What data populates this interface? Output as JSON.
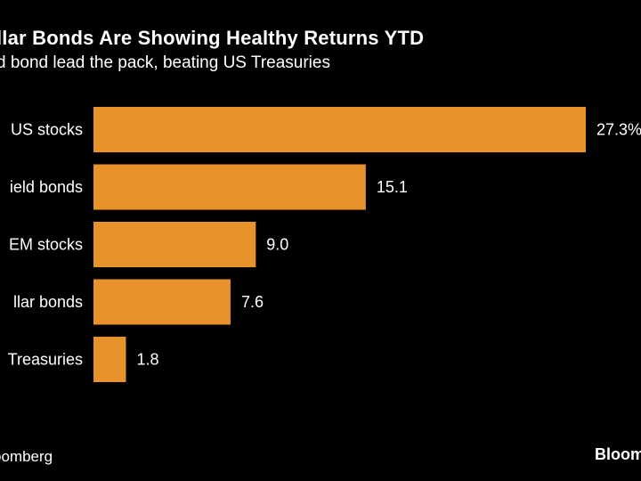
{
  "header": {
    "title": "llar Bonds Are Showing Healthy Returns YTD",
    "subtitle": "d bond lead the pack, beating US Treasuries"
  },
  "footer": {
    "source": "oomberg",
    "logo": "Bloom"
  },
  "colors": {
    "background": "#000000",
    "bar": "#E8922C",
    "text": "#FFFFFF"
  },
  "chart_data": {
    "type": "bar",
    "orientation": "horizontal",
    "categories": [
      "US stocks",
      "ield bonds",
      "EM stocks",
      "llar bonds",
      "Treasuries"
    ],
    "values": [
      27.3,
      15.1,
      9.0,
      7.6,
      1.8
    ],
    "value_labels": [
      "27.3%",
      "15.1",
      "9.0",
      "7.6",
      "1.8"
    ],
    "xlim": [
      0,
      30
    ],
    "grid": false,
    "legend": "none"
  }
}
